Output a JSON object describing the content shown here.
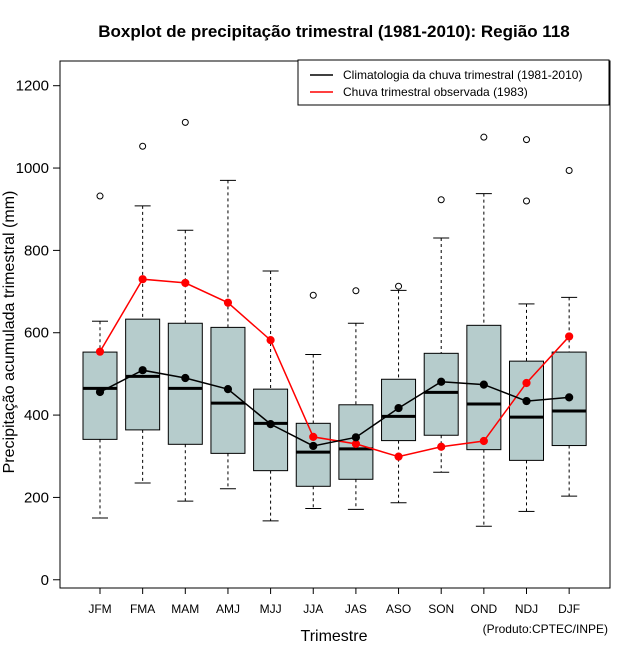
{
  "chart_data": {
    "type": "boxplot",
    "title": "Boxplot de precipitação trimestral (1981-2010): Região 118",
    "xlabel": "Trimestre",
    "ylabel": "Precipitação acumulada trimestral (mm)",
    "ylim": [
      -20,
      1260
    ],
    "yticks": [
      0,
      200,
      400,
      600,
      800,
      1000,
      1200
    ],
    "credit": "(Produto:CPTEC/INPE)",
    "categories": [
      "JFM",
      "FMA",
      "MAM",
      "AMJ",
      "MJJ",
      "JJA",
      "JAS",
      "ASO",
      "SON",
      "OND",
      "NDJ",
      "DJF"
    ],
    "boxes": [
      {
        "whisker_low": 150,
        "q1": 341,
        "median": 465,
        "q3": 553,
        "whisker_high": 628,
        "outliers": [
          932
        ]
      },
      {
        "whisker_low": 235,
        "q1": 364,
        "median": 494,
        "q3": 633,
        "whisker_high": 908,
        "outliers": [
          1053
        ]
      },
      {
        "whisker_low": 191,
        "q1": 329,
        "median": 465,
        "q3": 623,
        "whisker_high": 849,
        "outliers": [
          1111
        ]
      },
      {
        "whisker_low": 221,
        "q1": 307,
        "median": 429,
        "q3": 613,
        "whisker_high": 970,
        "outliers": []
      },
      {
        "whisker_low": 143,
        "q1": 265,
        "median": 380,
        "q3": 463,
        "whisker_high": 750,
        "outliers": []
      },
      {
        "whisker_low": 173,
        "q1": 227,
        "median": 310,
        "q3": 380,
        "whisker_high": 547,
        "outliers": [
          691
        ]
      },
      {
        "whisker_low": 171,
        "q1": 244,
        "median": 318,
        "q3": 425,
        "whisker_high": 623,
        "outliers": [
          702
        ]
      },
      {
        "whisker_low": 187,
        "q1": 338,
        "median": 397,
        "q3": 487,
        "whisker_high": 703,
        "outliers": [
          713
        ]
      },
      {
        "whisker_low": 261,
        "q1": 351,
        "median": 455,
        "q3": 550,
        "whisker_high": 830,
        "outliers": [
          923
        ]
      },
      {
        "whisker_low": 130,
        "q1": 316,
        "median": 427,
        "q3": 618,
        "whisker_high": 938,
        "outliers": [
          1075
        ]
      },
      {
        "whisker_low": 166,
        "q1": 290,
        "median": 395,
        "q3": 531,
        "whisker_high": 670,
        "outliers": [
          920,
          1069
        ]
      },
      {
        "whisker_low": 203,
        "q1": 326,
        "median": 410,
        "q3": 553,
        "whisker_high": 686,
        "outliers": [
          994
        ]
      }
    ],
    "series": [
      {
        "name": "Climatologia da chuva trimestral (1981-2010)",
        "color": "#000000",
        "values": [
          456,
          509,
          490,
          463,
          378,
          325,
          346,
          417,
          481,
          474,
          434,
          443
        ]
      },
      {
        "name": "Chuva trimestral observada (1983)",
        "color": "#ff0000",
        "values": [
          554,
          730,
          721,
          673,
          582,
          347,
          330,
          299,
          323,
          337,
          478,
          591
        ]
      }
    ],
    "legend_position": "top-right",
    "box_fill": "#b6cccc"
  }
}
